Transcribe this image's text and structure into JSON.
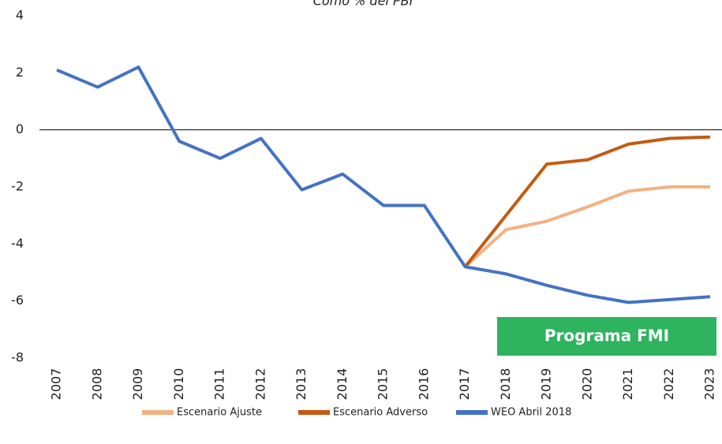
{
  "chart_data": {
    "type": "line",
    "subtitle": "Como % del PBI",
    "annotation": "Programa FMI",
    "categories": [
      "2007",
      "2008",
      "2009",
      "2010",
      "2011",
      "2012",
      "2013",
      "2014",
      "2015",
      "2016",
      "2017",
      "2018",
      "2019",
      "2020",
      "2021",
      "2022",
      "2023"
    ],
    "series": [
      {
        "name": "Escenario Ajuste",
        "color": "#f4b183",
        "values": [
          null,
          null,
          null,
          null,
          null,
          null,
          null,
          null,
          null,
          null,
          -4.8,
          -3.5,
          -3.2,
          -2.7,
          -2.15,
          -2.0,
          -2.0
        ]
      },
      {
        "name": "Escenario Adverso",
        "color": "#c55a11",
        "values": [
          null,
          null,
          null,
          null,
          null,
          null,
          null,
          null,
          null,
          null,
          -4.8,
          -3.0,
          -1.2,
          -1.05,
          -0.5,
          -0.3,
          -0.25
        ]
      },
      {
        "name": "WEO Abril 2018",
        "color": "#4472c4",
        "values": [
          2.1,
          1.5,
          2.2,
          -0.4,
          -1.0,
          -0.3,
          -2.1,
          -1.55,
          -2.65,
          -2.65,
          -4.8,
          -5.05,
          -5.45,
          -5.8,
          -6.05,
          -5.95,
          -5.85
        ]
      }
    ],
    "ylim": [
      -8,
      4
    ],
    "yticks": [
      -8,
      -6,
      -4,
      -2,
      0,
      2,
      4
    ],
    "grid": false,
    "legend": "bottom"
  }
}
